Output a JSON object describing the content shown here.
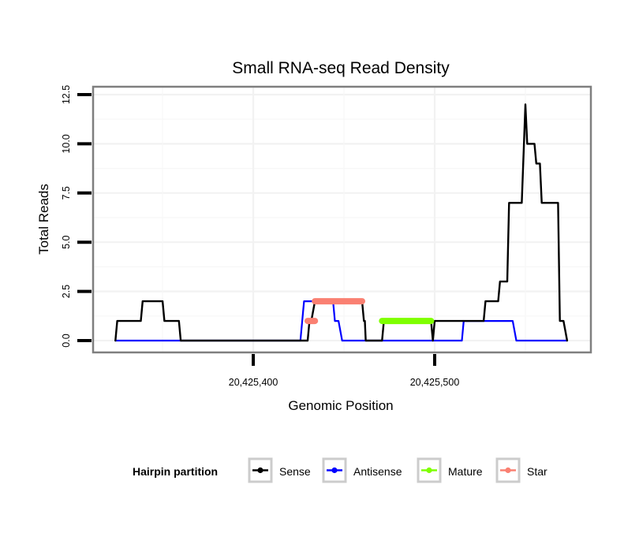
{
  "chart_data": {
    "type": "line",
    "title": "Small RNA-seq Read Density",
    "xlabel": "Genomic Position",
    "ylabel": "Total Reads",
    "xlim": [
      20425311.7,
      20425586.1
    ],
    "ylim": [
      -0.6,
      12.9
    ],
    "x_ticks": [
      20425400,
      20425500
    ],
    "x_tick_labels": [
      "20,425,400",
      "20,425,500"
    ],
    "y_ticks": [
      0,
      2.5,
      5,
      7.5,
      10,
      12.5
    ],
    "y_tick_labels": [
      "0.0",
      "2.5",
      "5.0",
      "7.5",
      "10.0",
      "12.5"
    ],
    "grid": true,
    "legend": {
      "title": "Hairpin partition",
      "position": "bottom",
      "entries": [
        "Sense",
        "Antisense",
        "Mature",
        "Star"
      ]
    },
    "series": [
      {
        "name": "Sense",
        "color": "#000000",
        "x": [
          20425324,
          20425325,
          20425338,
          20425339,
          20425350,
          20425351,
          20425359,
          20425360,
          20425430,
          20425431,
          20425432,
          20425434,
          20425460,
          20425461,
          20425461.5,
          20425462,
          20425471,
          20425472,
          20425498,
          20425499,
          20425500,
          20425527,
          20425528,
          20425535,
          20425536,
          20425540,
          20425541,
          20425548,
          20425550,
          20425551,
          20425552,
          20425555,
          20425556,
          20425558,
          20425559,
          20425568,
          20425569,
          20425571,
          20425573
        ],
        "y": [
          0,
          1,
          1,
          2,
          2,
          1,
          1,
          0,
          0,
          1,
          1,
          2,
          2,
          1,
          1,
          0,
          0,
          1,
          1,
          0,
          1,
          1,
          2,
          2,
          3,
          3,
          7,
          7,
          12,
          10,
          10,
          10,
          9,
          9,
          7,
          7,
          1,
          1,
          0
        ]
      },
      {
        "name": "Antisense",
        "color": "#0000ff",
        "x": [
          20425324,
          20425426,
          20425428,
          20425444,
          20425445,
          20425447,
          20425449,
          20425515,
          20425516,
          20425543,
          20425545,
          20425573
        ],
        "y": [
          0,
          0,
          2,
          2,
          1,
          1,
          0,
          0,
          1,
          1,
          0,
          0
        ]
      },
      {
        "name": "Mature",
        "color": "#7fff00",
        "x": [
          20425471,
          20425498
        ],
        "y": [
          1,
          1
        ]
      },
      {
        "name": "Star",
        "color": "#fa8072",
        "segments": [
          {
            "x": [
              20425430,
              20425434
            ],
            "y": [
              1,
              1
            ]
          },
          {
            "x": [
              20425434,
              20425460
            ],
            "y": [
              2,
              2
            ]
          }
        ]
      }
    ]
  }
}
